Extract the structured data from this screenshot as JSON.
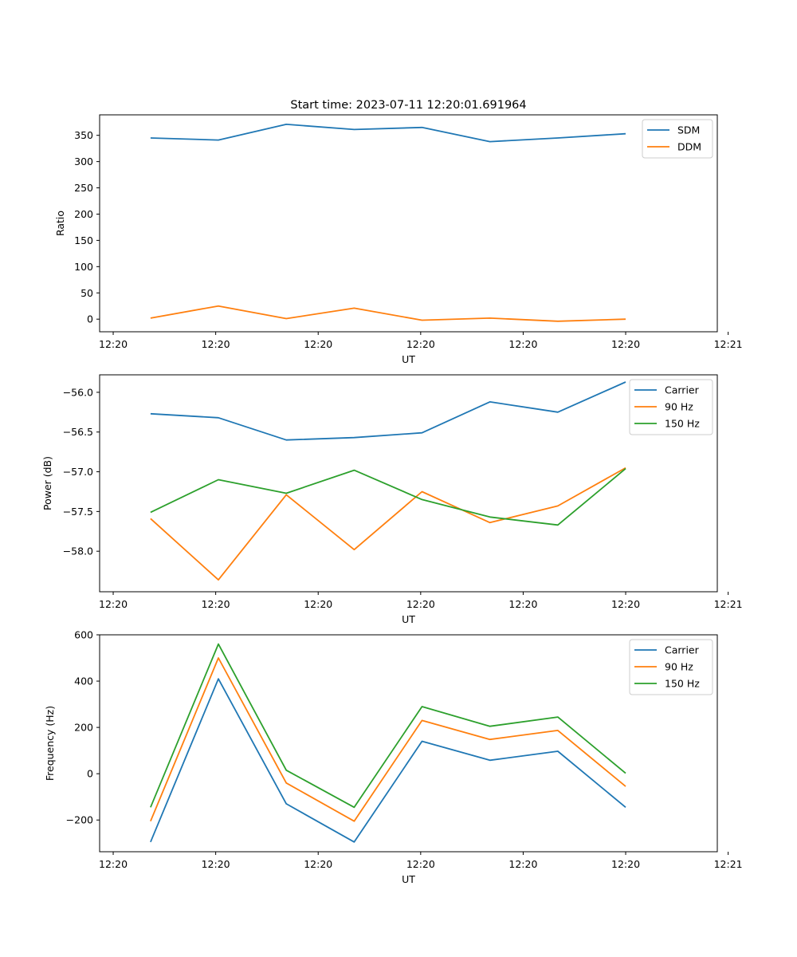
{
  "figure": {
    "title": "Start time: 2023-07-11 12:20:01.691964"
  },
  "colors": {
    "c0": "#1f77b4",
    "c1": "#ff7f0e",
    "c2": "#2ca02c"
  },
  "chart_data": [
    {
      "type": "line",
      "name": "ratio",
      "xlabel": "UT",
      "ylabel": "Ratio",
      "x": [
        1,
        2,
        3,
        4,
        5,
        6,
        7,
        8
      ],
      "xlim": [
        0.25,
        9.35
      ],
      "xticks": [
        0.45,
        1.96,
        3.47,
        4.98,
        6.49,
        8.0,
        9.51
      ],
      "xtick_labels": [
        "12:20",
        "12:20",
        "12:20",
        "12:20",
        "12:20",
        "12:20",
        "12:21"
      ],
      "ylim": [
        -24,
        389
      ],
      "yticks": [
        0,
        50,
        100,
        150,
        200,
        250,
        300,
        350
      ],
      "ytick_labels": [
        "0",
        "50",
        "100",
        "150",
        "200",
        "250",
        "300",
        "350"
      ],
      "legend_position": "top-right",
      "series": [
        {
          "name": "SDM",
          "color_key": "c0",
          "values": [
            345,
            341,
            371,
            361,
            365,
            338,
            345,
            353
          ]
        },
        {
          "name": "DDM",
          "color_key": "c1",
          "values": [
            2,
            25,
            1,
            21,
            -2,
            2,
            -4,
            0
          ]
        }
      ]
    },
    {
      "type": "line",
      "name": "power",
      "xlabel": "UT",
      "ylabel": "Power (dB)",
      "x": [
        1,
        2,
        3,
        4,
        5,
        6,
        7,
        8
      ],
      "xlim": [
        0.25,
        9.35
      ],
      "xticks": [
        0.45,
        1.96,
        3.47,
        4.98,
        6.49,
        8.0,
        9.51
      ],
      "xtick_labels": [
        "12:20",
        "12:20",
        "12:20",
        "12:20",
        "12:20",
        "12:20",
        "12:21"
      ],
      "ylim": [
        -58.51,
        -55.78
      ],
      "yticks": [
        -56.0,
        -56.5,
        -57.0,
        -57.5,
        -58.0
      ],
      "ytick_labels": [
        "−56.0",
        "−56.5",
        "−57.0",
        "−57.5",
        "−58.0"
      ],
      "legend_position": "top-right",
      "series": [
        {
          "name": "Carrier",
          "color_key": "c0",
          "values": [
            -56.27,
            -56.32,
            -56.6,
            -56.57,
            -56.51,
            -56.12,
            -56.25,
            -55.87
          ]
        },
        {
          "name": "90 Hz",
          "color_key": "c1",
          "values": [
            -57.59,
            -58.36,
            -57.29,
            -57.98,
            -57.25,
            -57.64,
            -57.43,
            -56.95
          ]
        },
        {
          "name": "150 Hz",
          "color_key": "c2",
          "values": [
            -57.51,
            -57.1,
            -57.27,
            -56.98,
            -57.35,
            -57.57,
            -57.67,
            -56.96
          ]
        }
      ]
    },
    {
      "type": "line",
      "name": "frequency",
      "xlabel": "UT",
      "ylabel": "Frequency (Hz)",
      "x": [
        1,
        2,
        3,
        4,
        5,
        6,
        7,
        8
      ],
      "xlim": [
        0.25,
        9.35
      ],
      "xticks": [
        0.45,
        1.96,
        3.47,
        4.98,
        6.49,
        8.0,
        9.51
      ],
      "xtick_labels": [
        "12:20",
        "12:20",
        "12:20",
        "12:20",
        "12:20",
        "12:20",
        "12:21"
      ],
      "ylim": [
        -337,
        600
      ],
      "yticks": [
        600,
        400,
        200,
        0,
        -200
      ],
      "ytick_labels": [
        "600",
        "400",
        "200",
        "0",
        "−200"
      ],
      "legend_position": "top-right",
      "series": [
        {
          "name": "Carrier",
          "color_key": "c0",
          "values": [
            -295,
            410,
            -130,
            -295,
            140,
            58,
            97,
            -145
          ]
        },
        {
          "name": "90 Hz",
          "color_key": "c1",
          "values": [
            -205,
            500,
            -40,
            -205,
            230,
            148,
            187,
            -55
          ]
        },
        {
          "name": "150 Hz",
          "color_key": "c2",
          "values": [
            -145,
            560,
            15,
            -145,
            290,
            205,
            245,
            2
          ]
        }
      ]
    }
  ]
}
